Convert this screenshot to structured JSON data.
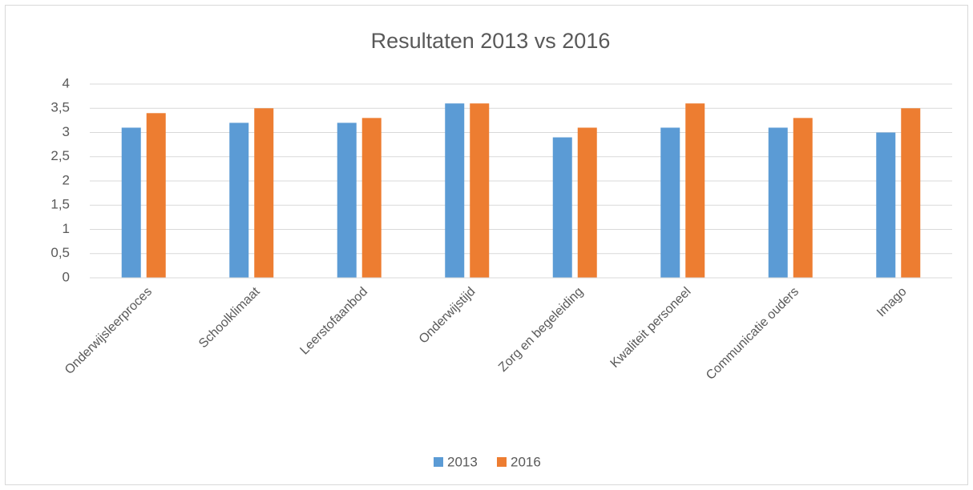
{
  "chart_data": {
    "type": "bar",
    "title": "Resultaten 2013 vs 2016",
    "categories": [
      "Onderwijsleerproces",
      "Schoolklimaat",
      "Leerstofaanbod",
      "Onderwijstijd",
      "Zorg en begeleiding",
      "Kwaliteit personeel",
      "Communicatie ouders",
      "Imago"
    ],
    "series": [
      {
        "name": "2013",
        "color": "#5b9bd5",
        "values": [
          3.1,
          3.2,
          3.2,
          3.6,
          2.9,
          3.1,
          3.1,
          3.0
        ]
      },
      {
        "name": "2016",
        "color": "#ed7d31",
        "values": [
          3.4,
          3.5,
          3.3,
          3.6,
          3.1,
          3.6,
          3.3,
          3.5
        ]
      }
    ],
    "ylim": [
      0,
      4
    ],
    "yticks": [
      0,
      {
        "value": 0.5,
        "label": "0,5"
      },
      1,
      {
        "value": 1.5,
        "label": "1,5"
      },
      2,
      {
        "value": 2.5,
        "label": "2,5"
      },
      3,
      {
        "value": 3.5,
        "label": "3,5"
      },
      4
    ],
    "grid": true,
    "legend": "bottom"
  }
}
